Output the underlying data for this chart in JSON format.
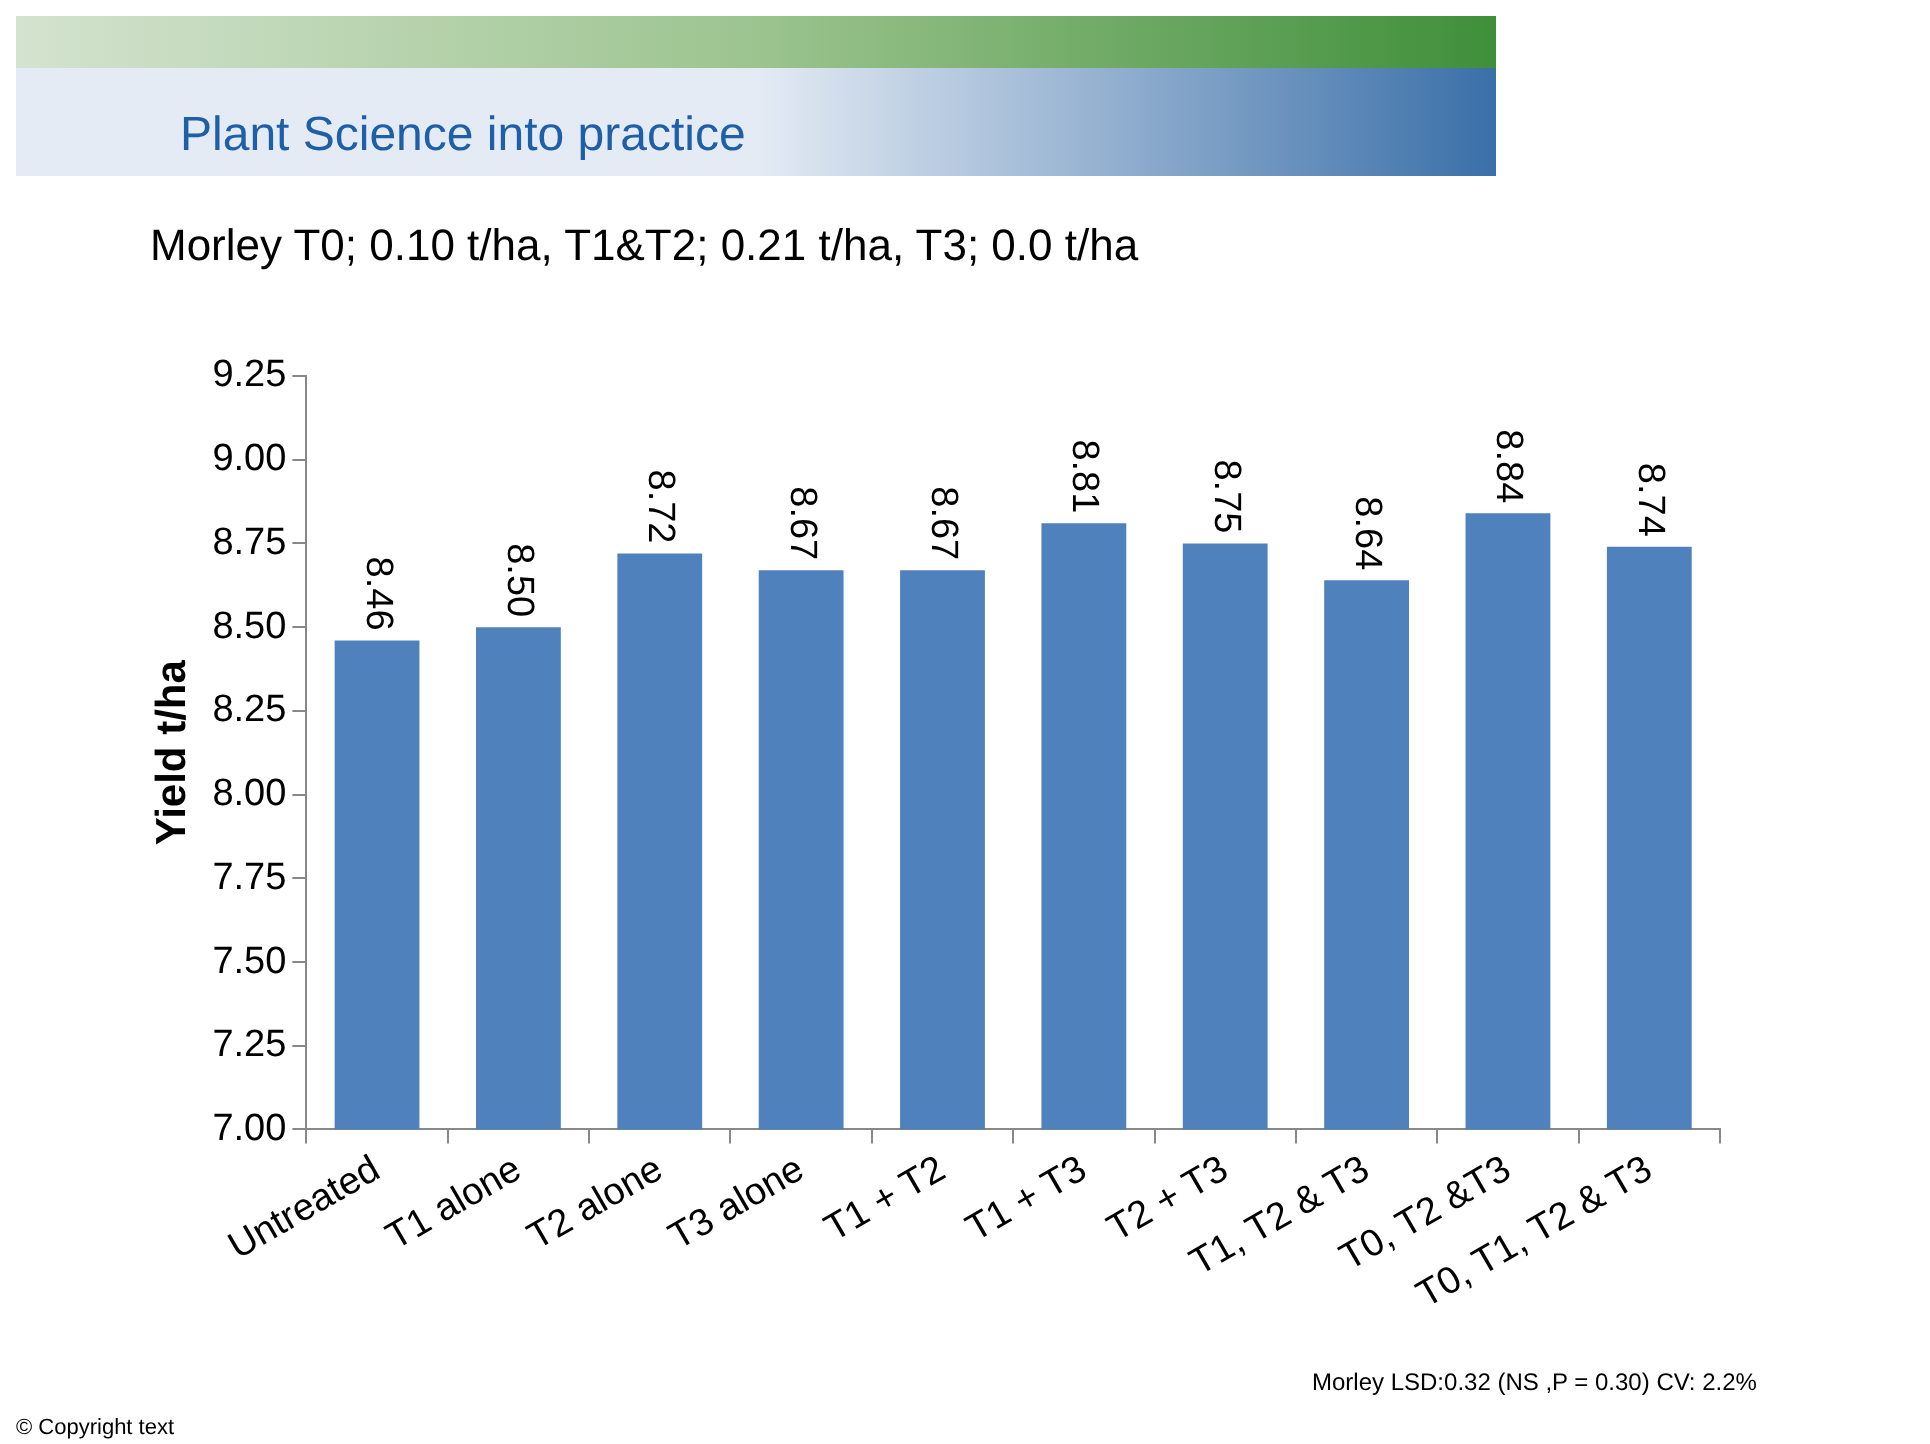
{
  "chart_data": {
    "type": "bar",
    "subtitle": "Plant Science into practice",
    "title": "Morley T0; 0.10 t/ha, T1&T2; 0.21 t/ha, T3; 0.0 t/ha",
    "ylabel": "Yield t/ha",
    "categories": [
      "Untreated",
      "T1 alone",
      "T2 alone",
      "T3 alone",
      "T1 + T2",
      "T1 + T3",
      "T2 + T3",
      "T1, T2 & T3",
      "T0, T2 &T3",
      "T0, T1, T2 & T3"
    ],
    "values": [
      8.46,
      8.5,
      8.72,
      8.67,
      8.67,
      8.81,
      8.75,
      8.64,
      8.84,
      8.74
    ],
    "value_labels": [
      "8.46",
      "8.50",
      "8.72",
      "8.67",
      "8.67",
      "8.81",
      "8.75",
      "8.64",
      "8.84",
      "8.74"
    ],
    "color": "#4f81bd",
    "ylim": [
      7,
      9.25
    ],
    "yticks": [
      {
        "value": 7,
        "label": "7.00"
      },
      {
        "value": 7.25,
        "label": "7.25"
      },
      {
        "value": 7.5,
        "label": "7.50"
      },
      {
        "value": 7.75,
        "label": "7.75"
      },
      {
        "value": 8,
        "label": "8.00"
      },
      {
        "value": 8.25,
        "label": "8.25"
      },
      {
        "value": 8.5,
        "label": "8.50"
      },
      {
        "value": 8.75,
        "label": "8.75"
      },
      {
        "value": 9,
        "label": "9.00"
      },
      {
        "value": 9.25,
        "label": "9.25"
      }
    ],
    "annotations": [
      "Morley LSD:0.32  (NS ,P = 0.30) CV: 2.2%",
      "© Copyright text"
    ]
  }
}
